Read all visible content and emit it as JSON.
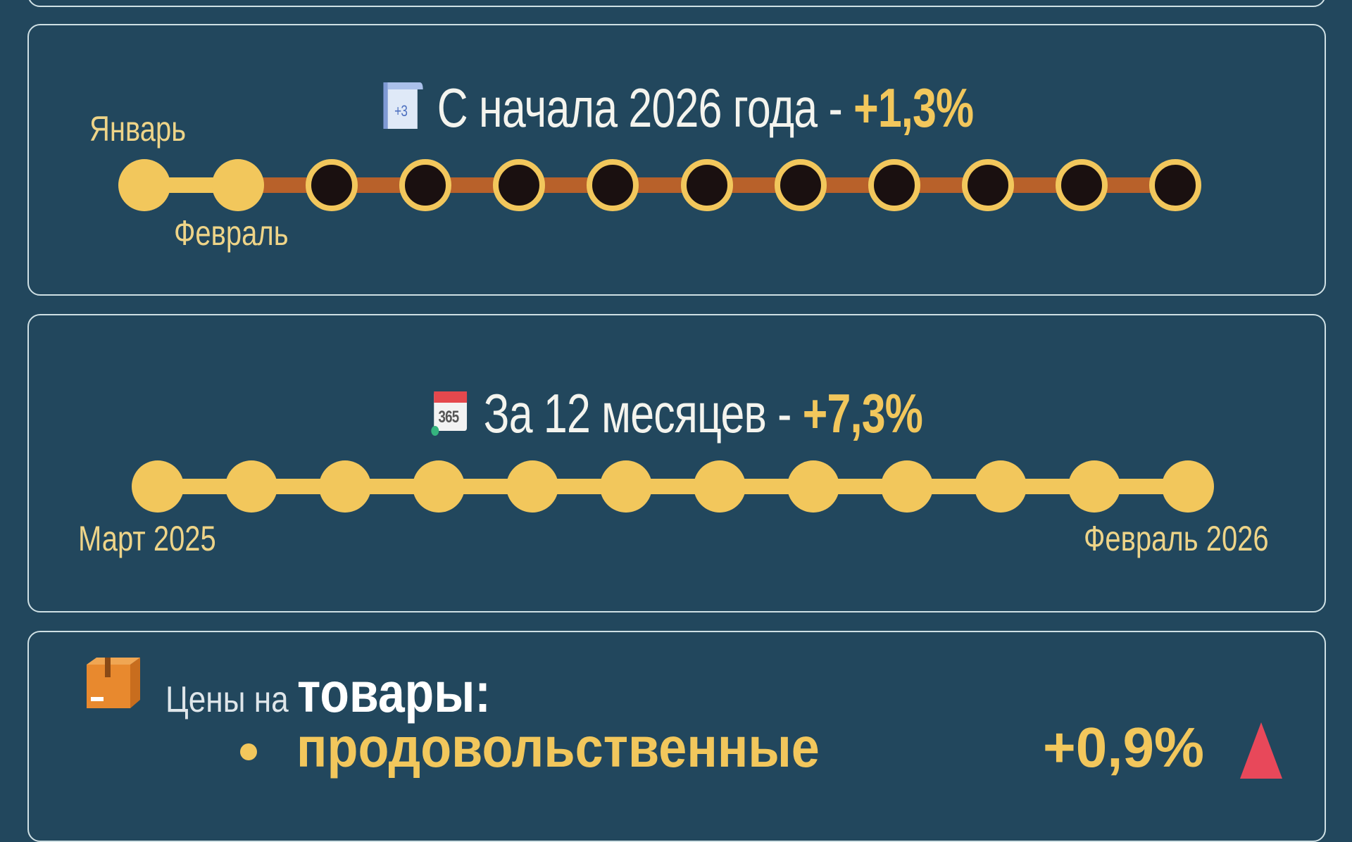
{
  "ytd": {
    "label": "С начала 2026 года - ",
    "value": "+1,3%",
    "start_label": "Январь",
    "second_label": "Февраль",
    "months_total": 12,
    "months_elapsed": 2
  },
  "yoy": {
    "label": "За 12 месяцев - ",
    "value": "+7,3%",
    "start_label": "Март 2025",
    "end_label": "Февраль 2026",
    "months_total": 12,
    "months_elapsed": 12
  },
  "goods": {
    "prefix": "Цены на ",
    "title": "товары:",
    "items": [
      {
        "label": "продовольственные",
        "value": "+0,9%",
        "trend": "up"
      }
    ]
  },
  "colors": {
    "background": "#22475d",
    "accent": "#f2c75c",
    "track_future": "#b8612a",
    "trend_up": "#e8485a"
  }
}
